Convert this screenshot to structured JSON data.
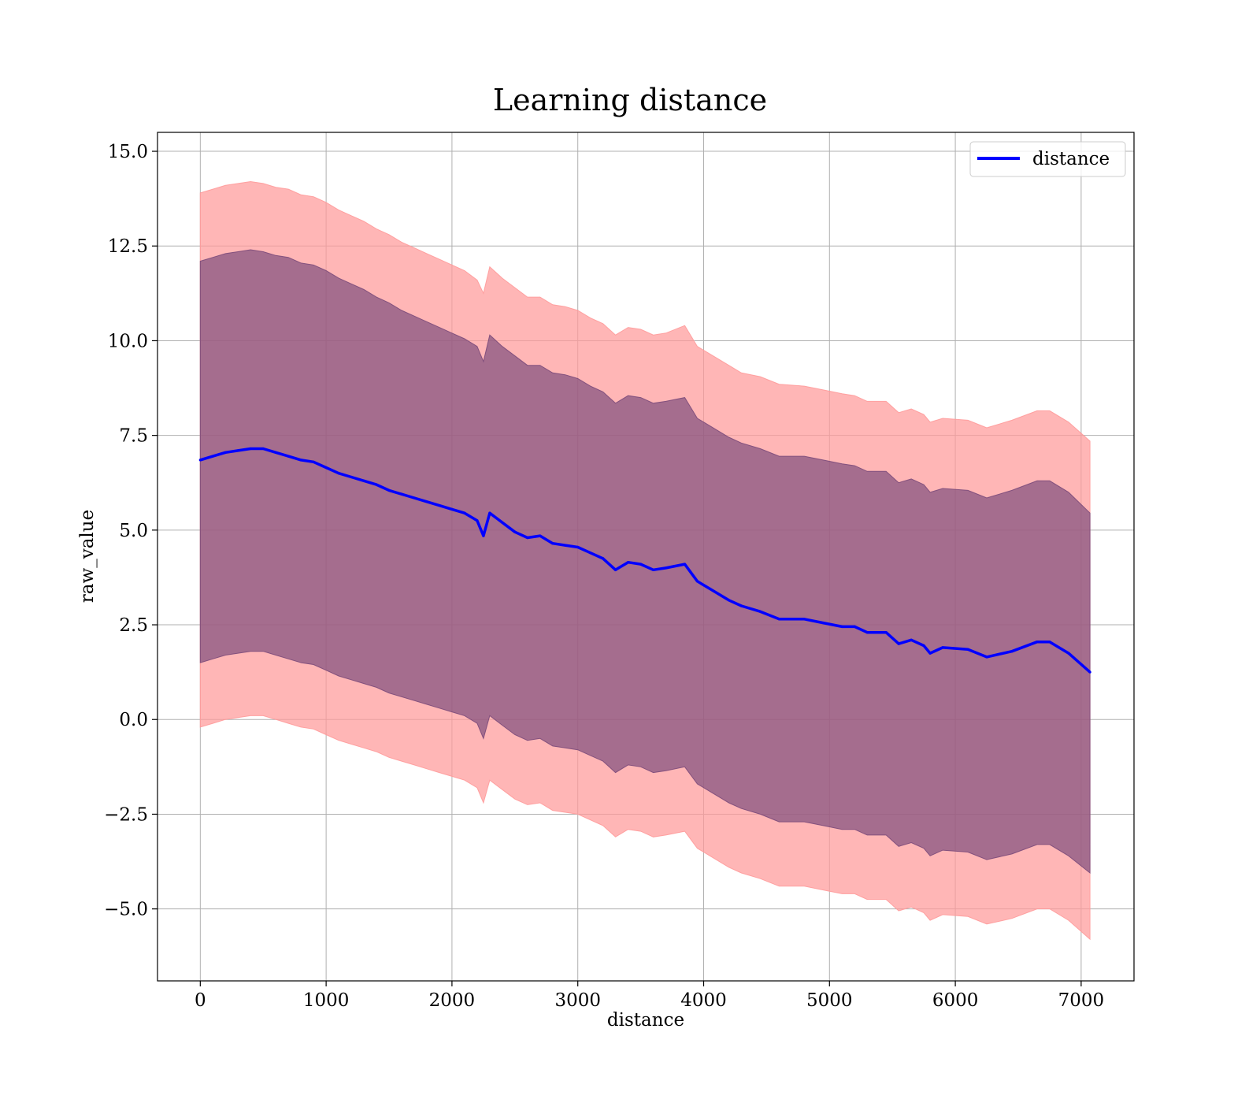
{
  "chart_data": {
    "type": "area",
    "title": "Learning distance",
    "xlabel": "distance",
    "ylabel": "raw_value",
    "xlim": [
      -340,
      7420
    ],
    "ylim": [
      -6.9,
      15.5
    ],
    "xticks": [
      0,
      1000,
      2000,
      3000,
      4000,
      5000,
      6000,
      7000
    ],
    "xtick_labels": [
      "0",
      "1000",
      "2000",
      "3000",
      "4000",
      "5000",
      "6000",
      "7000"
    ],
    "yticks": [
      -5.0,
      -2.5,
      0.0,
      2.5,
      5.0,
      7.5,
      10.0,
      12.5,
      15.0
    ],
    "ytick_labels": [
      "−5.0",
      "−2.5",
      "0.0",
      "2.5",
      "5.0",
      "7.5",
      "10.0",
      "12.5",
      "15.0"
    ],
    "grid": true,
    "legend": {
      "entries": [
        "distance"
      ],
      "placement": "top-right"
    },
    "x": [
      0,
      100,
      200,
      300,
      400,
      500,
      600,
      700,
      800,
      900,
      1000,
      1100,
      1200,
      1300,
      1400,
      1500,
      1600,
      1700,
      1800,
      1900,
      2000,
      2100,
      2200,
      2250,
      2300,
      2400,
      2500,
      2600,
      2700,
      2800,
      2900,
      3000,
      3100,
      3200,
      3300,
      3400,
      3500,
      3600,
      3700,
      3850,
      3950,
      4050,
      4200,
      4300,
      4450,
      4600,
      4800,
      4950,
      5100,
      5200,
      5300,
      5450,
      5550,
      5650,
      5750,
      5800,
      5900,
      6100,
      6250,
      6450,
      6650,
      6750,
      6900,
      7070
    ],
    "series": [
      {
        "name": "distance",
        "color": "#0000ff",
        "values": [
          6.85,
          6.95,
          7.05,
          7.1,
          7.15,
          7.15,
          7.05,
          6.95,
          6.85,
          6.8,
          6.65,
          6.5,
          6.4,
          6.3,
          6.2,
          6.05,
          5.95,
          5.85,
          5.75,
          5.65,
          5.55,
          5.45,
          5.25,
          4.85,
          5.45,
          5.2,
          4.95,
          4.8,
          4.85,
          4.65,
          4.6,
          4.55,
          4.4,
          4.25,
          3.95,
          4.15,
          4.1,
          3.95,
          4.0,
          4.1,
          3.65,
          3.45,
          3.15,
          3.0,
          2.85,
          2.65,
          2.65,
          2.55,
          2.45,
          2.45,
          2.3,
          2.3,
          2.0,
          2.1,
          1.95,
          1.75,
          1.9,
          1.85,
          1.65,
          1.8,
          2.05,
          2.05,
          1.75,
          1.25
        ]
      }
    ],
    "bands": [
      {
        "name": "outer",
        "color": "#ff9a9a",
        "upper": [
          13.9,
          14.0,
          14.1,
          14.15,
          14.2,
          14.15,
          14.05,
          14.0,
          13.85,
          13.8,
          13.65,
          13.45,
          13.3,
          13.15,
          12.95,
          12.8,
          12.6,
          12.45,
          12.3,
          12.15,
          12.0,
          11.85,
          11.6,
          11.25,
          11.95,
          11.65,
          11.4,
          11.15,
          11.15,
          10.95,
          10.9,
          10.8,
          10.6,
          10.45,
          10.15,
          10.35,
          10.3,
          10.15,
          10.2,
          10.4,
          9.85,
          9.65,
          9.35,
          9.15,
          9.05,
          8.85,
          8.8,
          8.7,
          8.6,
          8.55,
          8.4,
          8.4,
          8.1,
          8.2,
          8.05,
          7.85,
          7.95,
          7.9,
          7.7,
          7.9,
          8.15,
          8.15,
          7.85,
          7.35
        ],
        "lower": [
          -0.2,
          -0.1,
          0.0,
          0.05,
          0.1,
          0.1,
          0.0,
          -0.1,
          -0.2,
          -0.25,
          -0.4,
          -0.55,
          -0.65,
          -0.75,
          -0.85,
          -1.0,
          -1.1,
          -1.2,
          -1.3,
          -1.4,
          -1.5,
          -1.6,
          -1.8,
          -2.2,
          -1.6,
          -1.85,
          -2.1,
          -2.25,
          -2.2,
          -2.4,
          -2.45,
          -2.5,
          -2.65,
          -2.8,
          -3.1,
          -2.9,
          -2.95,
          -3.1,
          -3.05,
          -2.95,
          -3.4,
          -3.6,
          -3.9,
          -4.05,
          -4.2,
          -4.4,
          -4.4,
          -4.5,
          -4.6,
          -4.6,
          -4.75,
          -4.75,
          -5.05,
          -4.95,
          -5.1,
          -5.3,
          -5.15,
          -5.2,
          -5.4,
          -5.25,
          -5.0,
          -5.0,
          -5.3,
          -5.8
        ]
      },
      {
        "name": "inner",
        "color": "#7b4a7a",
        "upper": [
          12.1,
          12.2,
          12.3,
          12.35,
          12.4,
          12.35,
          12.25,
          12.2,
          12.05,
          12.0,
          11.85,
          11.65,
          11.5,
          11.35,
          11.15,
          11.0,
          10.8,
          10.65,
          10.5,
          10.35,
          10.2,
          10.05,
          9.85,
          9.45,
          10.15,
          9.85,
          9.6,
          9.35,
          9.35,
          9.15,
          9.1,
          9.0,
          8.8,
          8.65,
          8.35,
          8.55,
          8.5,
          8.35,
          8.4,
          8.5,
          7.95,
          7.75,
          7.45,
          7.3,
          7.15,
          6.95,
          6.95,
          6.85,
          6.75,
          6.7,
          6.55,
          6.55,
          6.25,
          6.35,
          6.2,
          6.0,
          6.1,
          6.05,
          5.85,
          6.05,
          6.3,
          6.3,
          6.0,
          5.45
        ],
        "lower": [
          1.5,
          1.6,
          1.7,
          1.75,
          1.8,
          1.8,
          1.7,
          1.6,
          1.5,
          1.45,
          1.3,
          1.15,
          1.05,
          0.95,
          0.85,
          0.7,
          0.6,
          0.5,
          0.4,
          0.3,
          0.2,
          0.1,
          -0.1,
          -0.5,
          0.1,
          -0.15,
          -0.4,
          -0.55,
          -0.5,
          -0.7,
          -0.75,
          -0.8,
          -0.95,
          -1.1,
          -1.4,
          -1.2,
          -1.25,
          -1.4,
          -1.35,
          -1.25,
          -1.7,
          -1.9,
          -2.2,
          -2.35,
          -2.5,
          -2.7,
          -2.7,
          -2.8,
          -2.9,
          -2.9,
          -3.05,
          -3.05,
          -3.35,
          -3.25,
          -3.4,
          -3.6,
          -3.45,
          -3.5,
          -3.7,
          -3.55,
          -3.3,
          -3.3,
          -3.6,
          -4.05
        ]
      }
    ]
  }
}
